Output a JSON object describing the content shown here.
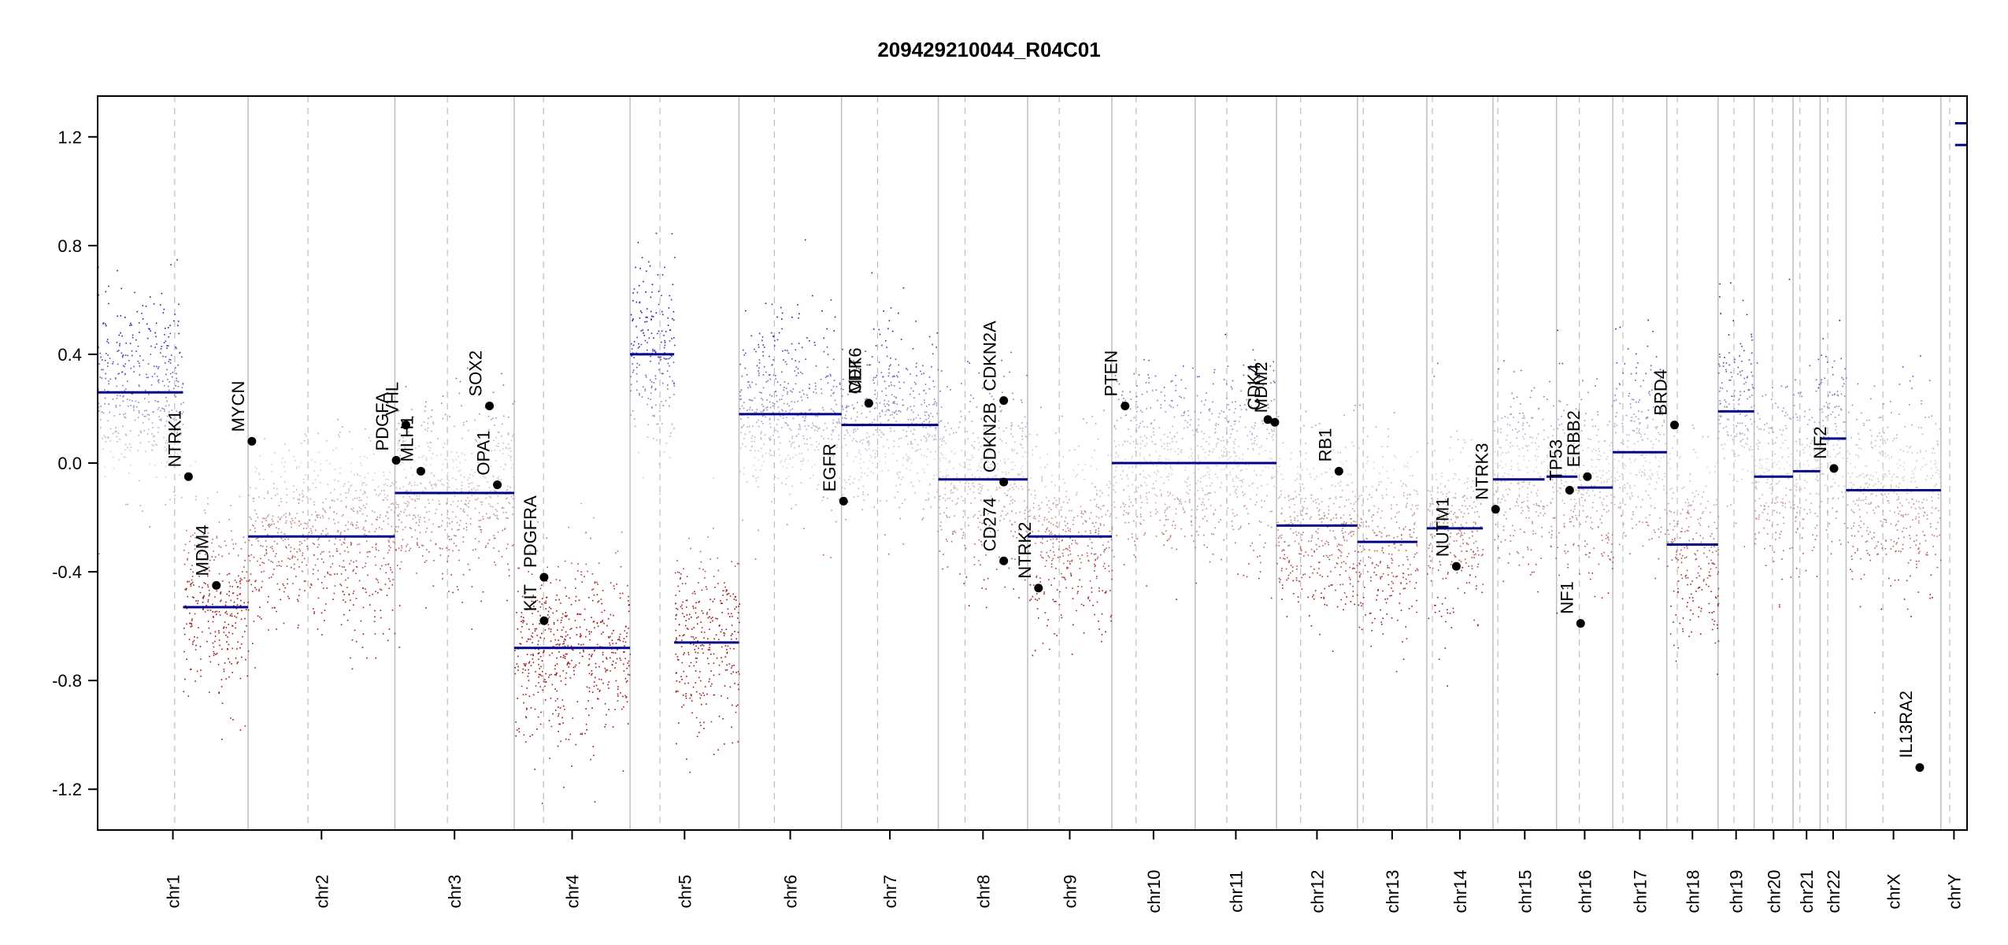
{
  "chart_data": {
    "type": "scatter",
    "title": "209429210044_R04C01",
    "xlabel": "",
    "ylabel": "",
    "ylim": [
      -1.35,
      1.35
    ],
    "yticks": [
      -1.2,
      -0.8,
      -0.4,
      0.0,
      0.4,
      0.8,
      1.2
    ],
    "ytick_labels": [
      "-1.2",
      "-0.8",
      "-0.4",
      "0.0",
      "0.4",
      "0.8",
      "1.2"
    ],
    "colors": {
      "gain": "#00008b",
      "loss": "#8b0000",
      "neutral": "#c8c8c8",
      "segment": "#00008b",
      "chrom_line": "#bebebe",
      "centromere": "#bebebe",
      "gene_point": "#000000"
    },
    "chromosomes": [
      {
        "name": "chr1",
        "span": [
          0.0,
          8.05
        ],
        "centromere": 4.12,
        "segments": [
          {
            "x": [
              0.0,
              4.57
            ],
            "y": 0.26
          },
          {
            "x": [
              4.57,
              8.05
            ],
            "y": -0.53
          }
        ]
      },
      {
        "name": "chr2",
        "span": [
          8.05,
          15.9
        ],
        "centromere": 11.25,
        "segments": [
          {
            "x": [
              8.05,
              15.9
            ],
            "y": -0.27
          }
        ]
      },
      {
        "name": "chr3",
        "span": [
          15.9,
          22.28
        ],
        "centromere": 18.71,
        "segments": [
          {
            "x": [
              15.9,
              22.28
            ],
            "y": -0.11
          }
        ]
      },
      {
        "name": "chr4",
        "span": [
          22.28,
          28.48
        ],
        "centromere": 23.85,
        "segments": [
          {
            "x": [
              22.28,
              28.48
            ],
            "y": -0.68
          }
        ]
      },
      {
        "name": "chr5",
        "span": [
          28.48,
          34.31
        ],
        "centromere": 30.08,
        "segments": [
          {
            "x": [
              28.48,
              30.84
            ],
            "y": 0.4
          },
          {
            "x": [
              30.84,
              34.31
            ],
            "y": -0.66
          }
        ]
      },
      {
        "name": "chr6",
        "span": [
          34.31,
          39.79
        ],
        "centromere": 36.2,
        "segments": [
          {
            "x": [
              34.31,
              39.79
            ],
            "y": 0.18
          }
        ]
      },
      {
        "name": "chr7",
        "span": [
          39.79,
          44.97
        ],
        "centromere": 41.72,
        "segments": [
          {
            "x": [
              39.79,
              44.97
            ],
            "y": 0.14
          }
        ]
      },
      {
        "name": "chr8",
        "span": [
          44.97,
          49.75
        ],
        "centromere": 46.4,
        "segments": [
          {
            "x": [
              44.97,
              49.75
            ],
            "y": -0.06
          }
        ]
      },
      {
        "name": "chr9",
        "span": [
          49.75,
          54.25
        ],
        "centromere": 51.44,
        "segments": [
          {
            "x": [
              49.75,
              54.25
            ],
            "y": -0.27
          }
        ]
      },
      {
        "name": "chr10",
        "span": [
          54.25,
          58.71
        ],
        "centromere": 55.55,
        "segments": [
          {
            "x": [
              54.25,
              58.71
            ],
            "y": 0.0
          }
        ]
      },
      {
        "name": "chr11",
        "span": [
          58.71,
          63.06
        ],
        "centromere": 60.4,
        "segments": [
          {
            "x": [
              58.71,
              63.06
            ],
            "y": 0.0
          }
        ]
      },
      {
        "name": "chr12",
        "span": [
          63.06,
          67.39
        ],
        "centromere": 64.35,
        "segments": [
          {
            "x": [
              63.06,
              67.39
            ],
            "y": -0.23
          }
        ]
      },
      {
        "name": "chr13",
        "span": [
          67.39,
          71.1
        ],
        "centromere": 67.7,
        "segments": [
          {
            "x": [
              67.39,
              70.6
            ],
            "y": -0.29
          }
        ]
      },
      {
        "name": "chr14",
        "span": [
          71.1,
          74.64
        ],
        "centromere": 71.4,
        "segments": [
          {
            "x": [
              71.1,
              74.1
            ],
            "y": -0.24
          }
        ]
      },
      {
        "name": "chr15",
        "span": [
          74.64,
          78.04
        ],
        "centromere": 74.9,
        "segments": [
          {
            "x": [
              74.64,
              77.4
            ],
            "y": -0.06
          }
        ]
      },
      {
        "name": "chr16",
        "span": [
          78.04,
          81.05
        ],
        "centromere": 79.26,
        "segments": [
          {
            "x": [
              77.5,
              79.16
            ],
            "y": -0.05
          },
          {
            "x": [
              79.16,
              81.05
            ],
            "y": -0.09
          }
        ]
      },
      {
        "name": "chr17",
        "span": [
          81.05,
          83.94
        ],
        "centromere": 81.59,
        "segments": [
          {
            "x": [
              81.05,
              83.94
            ],
            "y": 0.04
          }
        ]
      },
      {
        "name": "chr18",
        "span": [
          83.94,
          86.68
        ],
        "centromere": 84.5,
        "segments": [
          {
            "x": [
              83.94,
              86.68
            ],
            "y": -0.3
          }
        ]
      },
      {
        "name": "chr19",
        "span": [
          86.68,
          88.61
        ],
        "centromere": 87.53,
        "segments": [
          {
            "x": [
              86.68,
              88.61
            ],
            "y": 0.19
          }
        ]
      },
      {
        "name": "chr20",
        "span": [
          88.61,
          90.69
        ],
        "centromere": 89.59,
        "segments": [
          {
            "x": [
              88.61,
              90.69
            ],
            "y": -0.05
          }
        ]
      },
      {
        "name": "chr21",
        "span": [
          90.69,
          92.14
        ],
        "centromere": 91.06,
        "segments": [
          {
            "x": [
              90.69,
              92.14
            ],
            "y": -0.03
          }
        ]
      },
      {
        "name": "chr22",
        "span": [
          92.14,
          93.53
        ],
        "centromere": 92.55,
        "segments": [
          {
            "x": [
              92.14,
              93.53
            ],
            "y": 0.09
          }
        ]
      },
      {
        "name": "chrX",
        "span": [
          93.53,
          98.6
        ],
        "centromere": 95.5,
        "segments": [
          {
            "x": [
              93.53,
              98.6
            ],
            "y": -0.1
          }
        ]
      },
      {
        "name": "chrY",
        "span": [
          98.6,
          100.0
        ],
        "centromere": 99.07,
        "segments": [
          {
            "x": [
              99.36,
              100.0
            ],
            "y": 1.25
          },
          {
            "x": [
              99.36,
              100.0
            ],
            "y": 1.17
          }
        ]
      }
    ],
    "genes": [
      {
        "name": "NTRK1",
        "x": 4.86,
        "y": -0.05
      },
      {
        "name": "MDM4",
        "x": 6.35,
        "y": -0.45
      },
      {
        "name": "MYCN",
        "x": 8.25,
        "y": 0.08
      },
      {
        "name": "PDGFA",
        "x": 15.97,
        "y": 0.01
      },
      {
        "name": "VHL",
        "x": 16.49,
        "y": 0.14
      },
      {
        "name": "MLH1",
        "x": 17.29,
        "y": -0.03
      },
      {
        "name": "SOX2",
        "x": 20.96,
        "y": 0.21
      },
      {
        "name": "OPA1",
        "x": 21.38,
        "y": -0.08
      },
      {
        "name": "PDGFRA",
        "x": 23.88,
        "y": -0.42
      },
      {
        "name": "KIT",
        "x": 23.88,
        "y": -0.58
      },
      {
        "name": "EGFR",
        "x": 39.9,
        "y": -0.14
      },
      {
        "name": "CDK6",
        "x": 41.25,
        "y": 0.22
      },
      {
        "name": "MET",
        "x": 41.25,
        "y": 0.22
      },
      {
        "name": "CDKN2A",
        "x": 48.47,
        "y": 0.23
      },
      {
        "name": "CDKN2B",
        "x": 48.47,
        "y": -0.07
      },
      {
        "name": "CD274",
        "x": 48.47,
        "y": -0.36
      },
      {
        "name": "NTRK2",
        "x": 50.33,
        "y": -0.46
      },
      {
        "name": "PTEN",
        "x": 54.96,
        "y": 0.21
      },
      {
        "name": "CDK4",
        "x": 62.6,
        "y": 0.16
      },
      {
        "name": "MDM2",
        "x": 62.97,
        "y": 0.15
      },
      {
        "name": "RB1",
        "x": 66.4,
        "y": -0.03
      },
      {
        "name": "NUTM1",
        "x": 72.68,
        "y": -0.38
      },
      {
        "name": "NTRK3",
        "x": 74.78,
        "y": -0.17
      },
      {
        "name": "TP53",
        "x": 78.74,
        "y": -0.1
      },
      {
        "name": "NF1",
        "x": 79.33,
        "y": -0.59
      },
      {
        "name": "ERBB2",
        "x": 79.69,
        "y": -0.05
      },
      {
        "name": "BRD4",
        "x": 84.35,
        "y": 0.14
      },
      {
        "name": "NF2",
        "x": 92.88,
        "y": -0.02
      },
      {
        "name": "IL13RA2",
        "x": 97.47,
        "y": -1.12
      }
    ]
  }
}
